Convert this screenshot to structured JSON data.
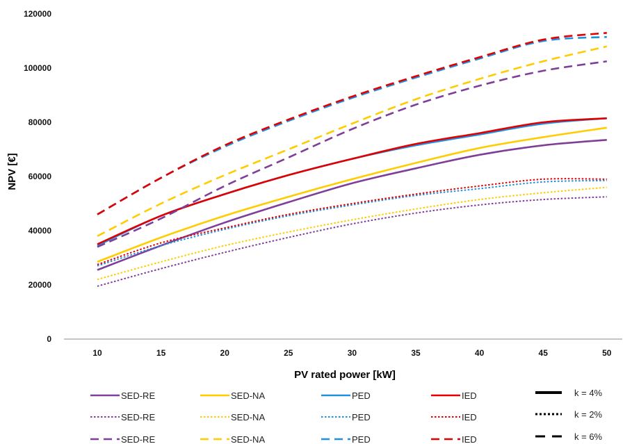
{
  "chart_data": {
    "type": "line",
    "xlabel": "PV rated power [kW]",
    "ylabel": "NPV [€]",
    "x": [
      10,
      15,
      20,
      25,
      30,
      35,
      40,
      45,
      50
    ],
    "ylim": [
      0,
      120000
    ],
    "yticks": [
      0,
      20000,
      40000,
      60000,
      80000,
      100000,
      120000
    ],
    "grid": false,
    "legend_position": "bottom",
    "series": [
      {
        "name": "SED-RE",
        "color": "#7F3F98",
        "dash": "solid",
        "values": [
          25500,
          34500,
          43000,
          50500,
          57500,
          63000,
          68000,
          71500,
          73500
        ]
      },
      {
        "name": "SED-NA",
        "color": "#FFCC00",
        "dash": "solid",
        "values": [
          28500,
          37500,
          45500,
          52500,
          59000,
          65000,
          70500,
          74500,
          78000
        ]
      },
      {
        "name": "PED",
        "color": "#1F8FE0",
        "dash": "solid",
        "values": [
          34500,
          45500,
          53500,
          60500,
          66500,
          71500,
          75500,
          79500,
          81500
        ]
      },
      {
        "name": "IED",
        "color": "#E00000",
        "dash": "solid",
        "values": [
          35000,
          45500,
          53500,
          60500,
          66500,
          72000,
          76000,
          80000,
          81500
        ]
      },
      {
        "name": "SED-RE",
        "color": "#7F3F98",
        "dash": "dotted",
        "values": [
          19500,
          26000,
          32000,
          37500,
          42500,
          46500,
          49500,
          51500,
          52500
        ]
      },
      {
        "name": "SED-NA",
        "color": "#FFCC00",
        "dash": "dotted",
        "values": [
          22000,
          28500,
          34500,
          39500,
          44000,
          48000,
          51500,
          54000,
          56000
        ]
      },
      {
        "name": "PED",
        "color": "#1F8FE0",
        "dash": "dotted",
        "values": [
          27000,
          34500,
          40500,
          45500,
          49500,
          53000,
          55500,
          58000,
          58500
        ]
      },
      {
        "name": "IED",
        "color": "#E00000",
        "dash": "dotted",
        "values": [
          27500,
          35500,
          41000,
          46000,
          50000,
          53500,
          56500,
          59000,
          59000
        ]
      },
      {
        "name": "SED-RE",
        "color": "#7F3F98",
        "dash": "dashed",
        "values": [
          34000,
          44500,
          56500,
          67000,
          77500,
          86500,
          93500,
          99000,
          102500
        ]
      },
      {
        "name": "SED-NA",
        "color": "#FFCC00",
        "dash": "dashed",
        "values": [
          38000,
          50000,
          60500,
          70000,
          79500,
          88500,
          96000,
          102500,
          108000
        ]
      },
      {
        "name": "PED",
        "color": "#1F8FE0",
        "dash": "dashed",
        "values": [
          46000,
          59500,
          71000,
          80500,
          89000,
          96500,
          103500,
          110000,
          111500
        ]
      },
      {
        "name": "IED",
        "color": "#E00000",
        "dash": "dashed",
        "values": [
          46000,
          59500,
          71500,
          81000,
          89500,
          97000,
          104000,
          110500,
          113000
        ]
      }
    ],
    "legend": {
      "rows": [
        {
          "style": "solid",
          "items": [
            "SED-RE",
            "SED-NA",
            "PED",
            "IED"
          ],
          "key_label": "k = 4%"
        },
        {
          "style": "dotted",
          "items": [
            "SED-RE",
            "SED-NA",
            "PED",
            "IED"
          ],
          "key_label": "k = 2%"
        },
        {
          "style": "dashed",
          "items": [
            "SED-RE",
            "SED-NA",
            "PED",
            "IED"
          ],
          "key_label": "k = 6%"
        }
      ],
      "colors": [
        "#7F3F98",
        "#FFCC00",
        "#1F8FE0",
        "#E00000"
      ],
      "key_color": "#000000"
    }
  }
}
